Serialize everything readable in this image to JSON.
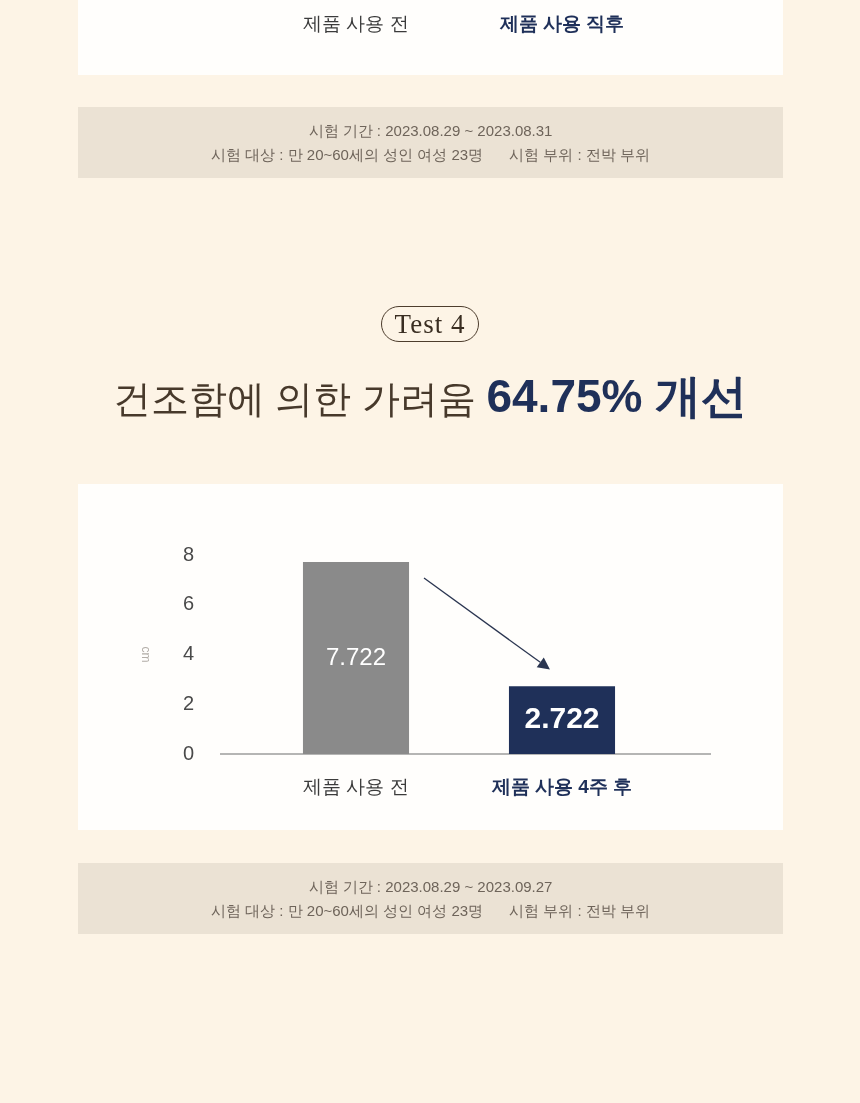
{
  "chart_data": [
    {
      "type": "other",
      "categories": [
        "제품 사용 전",
        "제품 사용 직후"
      ],
      "annotations": [
        "시험 기간 : 2023.08.29 ~ 2023.08.31",
        "시험 대상 : 만 20~60세의 성인 여성 23명",
        "시험 부위 : 전박 부위"
      ]
    },
    {
      "type": "bar",
      "subtitle": "Test 4",
      "title": "건조함에 의한 가려움 64.75% 개선",
      "ylabel": "cm",
      "categories": [
        "제품 사용 전",
        "제품 사용 4주 후"
      ],
      "values": [
        7.722,
        2.722
      ],
      "colors": [
        "#8a8a8a",
        "#1f3059"
      ],
      "ylim": [
        0,
        8
      ],
      "yticks": [
        0,
        2,
        4,
        6,
        8
      ],
      "data_labels": true,
      "annotations": [
        "시험 기간 : 2023.08.29 ~ 2023.09.27",
        "시험 대상 : 만 20~60세의 성인 여성 23명",
        "시험 부위 : 전박 부위"
      ]
    }
  ]
}
